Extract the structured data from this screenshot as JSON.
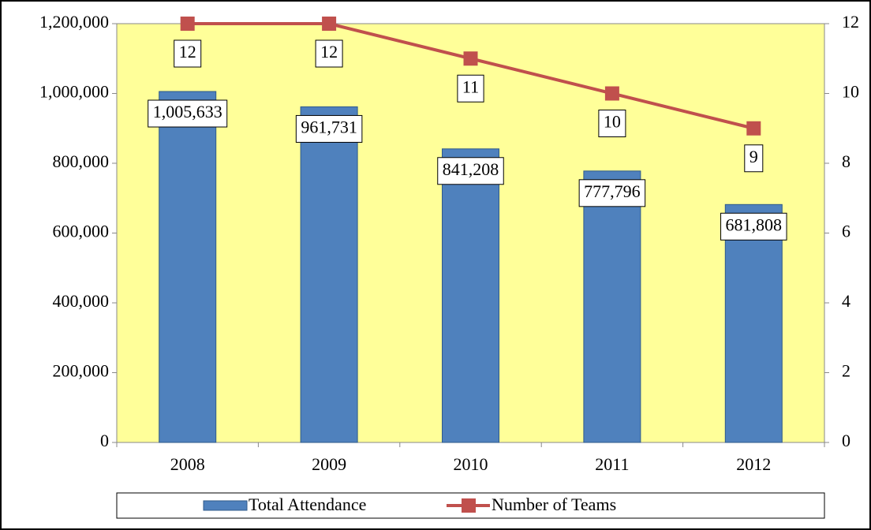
{
  "chart_data": {
    "type": "bar",
    "categories": [
      "2008",
      "2009",
      "2010",
      "2011",
      "2012"
    ],
    "series": [
      {
        "name": "Total Attendance",
        "type": "bar",
        "color": "#4f81bd",
        "values": [
          1005633,
          961731,
          841208,
          777796,
          681808
        ],
        "value_labels": [
          "1,005,633",
          "961,731",
          "841,208",
          "777,796",
          "681,808"
        ]
      },
      {
        "name": "Number of Teams",
        "type": "line",
        "axis": "y2",
        "color": "#c0504d",
        "values": [
          12,
          12,
          11,
          10,
          9
        ]
      }
    ],
    "ylim": [
      0,
      1200000
    ],
    "yticks": [
      0,
      {
        "value": 200000,
        "label": "200,000"
      },
      {
        "value": 400000,
        "label": "400,000"
      },
      {
        "value": 600000,
        "label": "600,000"
      },
      {
        "value": 800000,
        "label": "800,000"
      },
      {
        "value": 1000000,
        "label": "1,000,000"
      },
      {
        "value": 1200000,
        "label": "1,200,000"
      }
    ],
    "y2lim": [
      0,
      12
    ],
    "y2ticks": [
      0,
      2,
      4,
      6,
      8,
      10,
      12
    ],
    "plot_background": "#ffff99",
    "legend": "bottom"
  }
}
